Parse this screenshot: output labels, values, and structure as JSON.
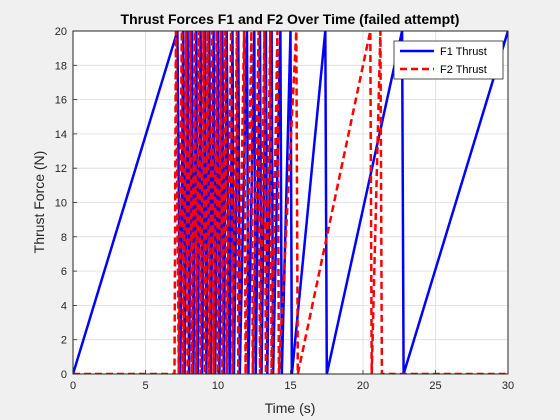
{
  "chart_data": {
    "type": "line",
    "title": "Thrust Forces F1 and F2 Over Time (failed attempt)",
    "xlabel": "Time (s)",
    "ylabel": "Thrust Force (N)",
    "xlim": [
      0,
      30
    ],
    "ylim": [
      0,
      20
    ],
    "xticks": [
      "0",
      "5",
      "10",
      "15",
      "20",
      "25",
      "30"
    ],
    "yticks": [
      "0",
      "2",
      "4",
      "6",
      "8",
      "10",
      "12",
      "14",
      "16",
      "18",
      "20"
    ],
    "grid": true,
    "legend": "top-right",
    "colors": {
      "F1": "#0000ff",
      "F2": "#ff0000"
    },
    "series": [
      {
        "name": "F1 Thrust",
        "style": "solid",
        "x": [
          0,
          7.2,
          7.4,
          7.6,
          7.7,
          7.9,
          8.0,
          8.2,
          8.3,
          8.5,
          8.6,
          8.8,
          8.9,
          9.1,
          9.2,
          9.4,
          9.5,
          9.7,
          9.8,
          10.0,
          10.1,
          10.3,
          10.4,
          10.6,
          10.8,
          11.0,
          11.1,
          11.4,
          11.5,
          12.0,
          12.1,
          12.5,
          12.6,
          12.9,
          13.0,
          13.3,
          13.4,
          13.7,
          13.8,
          14.3,
          14.4,
          15.0,
          15.1,
          17.4,
          17.5,
          22.7,
          22.8,
          30
        ],
        "y": [
          0,
          20,
          0,
          20,
          0,
          20,
          0,
          20,
          0,
          20,
          0,
          20,
          0,
          20,
          0,
          20,
          0,
          20,
          0,
          20,
          0,
          20,
          0,
          20,
          0,
          20,
          0,
          20,
          0,
          20,
          0,
          20,
          0,
          20,
          0,
          20,
          0,
          20,
          0,
          20,
          0,
          20,
          0,
          20,
          0,
          20,
          0,
          20
        ]
      },
      {
        "name": "F2 Thrust",
        "style": "dashed",
        "x": [
          0,
          7.0,
          7.1,
          7.3,
          7.5,
          7.6,
          7.8,
          7.9,
          8.1,
          8.2,
          8.4,
          8.5,
          8.7,
          8.8,
          9.0,
          9.1,
          9.3,
          9.4,
          9.6,
          9.7,
          9.9,
          10.0,
          10.2,
          10.3,
          10.5,
          10.6,
          10.9,
          11.0,
          11.3,
          11.4,
          11.8,
          11.9,
          12.3,
          12.4,
          12.8,
          12.9,
          13.2,
          13.3,
          13.6,
          13.7,
          14.1,
          14.2,
          15.4,
          15.5,
          20.5,
          20.6,
          21.2,
          21.3,
          30
        ],
        "y": [
          0,
          0,
          20,
          0,
          20,
          0,
          20,
          0,
          20,
          0,
          20,
          0,
          20,
          0,
          20,
          0,
          20,
          0,
          20,
          0,
          20,
          0,
          20,
          0,
          20,
          0,
          20,
          0,
          20,
          0,
          20,
          0,
          20,
          0,
          20,
          0,
          20,
          0,
          20,
          0,
          20,
          0,
          20,
          0,
          20,
          0,
          20,
          0,
          0
        ]
      }
    ]
  }
}
